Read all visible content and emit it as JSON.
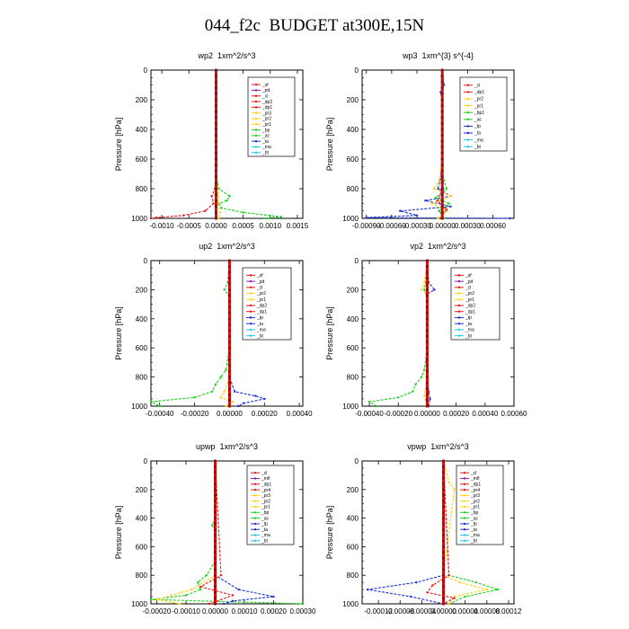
{
  "page": {
    "title": "044_f2c  BUDGET at300E,15N"
  },
  "chart_data": [
    {
      "type": "line",
      "title": "wp2  1xm^2/s^3",
      "ylabel": "Pressure [hPa]",
      "y_ticks": [
        0,
        200,
        400,
        600,
        800,
        1000
      ],
      "ylim": [
        1000,
        0
      ],
      "x_ticks": [
        "-0.0010",
        "-0.0005",
        "0.0000",
        "0.0005",
        "0.0010",
        "0.0015"
      ],
      "xlim": [
        -0.0012,
        0.0016
      ],
      "legend": [
        "_sf",
        "_pd",
        "_cl",
        "_dp2",
        "_dp1",
        "_pr3",
        "_pr2",
        "_pr1",
        "_bp",
        "_ac",
        "_ta",
        "_ma",
        "_bt"
      ],
      "series": [
        {
          "name": "_cl",
          "color": "#e8191b",
          "p": [
            0,
            200,
            400,
            600,
            800,
            850,
            900,
            950,
            980,
            995,
            1000
          ],
          "v": [
            0,
            0,
            0,
            0,
            -2e-05,
            -8e-05,
            -5e-05,
            -0.0002,
            -0.0006,
            -0.0011,
            -0.0012
          ]
        },
        {
          "name": "_bp",
          "color": "#1bd11b",
          "p": [
            0,
            400,
            700,
            800,
            850,
            880,
            900,
            930,
            960,
            990,
            1000
          ],
          "v": [
            0,
            0,
            0,
            5e-05,
            0.00025,
            0.0002,
            5e-05,
            0.0001,
            0.0005,
            0.0012,
            0.0009
          ]
        },
        {
          "name": "_pr1",
          "color": "#ffd21c",
          "p": [
            0,
            600,
            780,
            850,
            900,
            960,
            1000
          ],
          "v": [
            0,
            0,
            2e-05,
            4e-05,
            3e-05,
            8e-05,
            5e-05
          ]
        },
        {
          "name": "_bt",
          "color": "#1cc8e6",
          "p": [
            0,
            500,
            900,
            1000
          ],
          "v": [
            0,
            0,
            1e-05,
            0
          ]
        },
        {
          "name": "_pd",
          "color": "#8a1fa8",
          "p": [
            0,
            1000
          ],
          "v": [
            0,
            0
          ]
        }
      ]
    },
    {
      "type": "line",
      "title": "wp3  1xm^{3} s^{-4}",
      "ylabel": "Pressure [hPa]",
      "y_ticks": [
        0,
        200,
        400,
        600,
        800,
        1000
      ],
      "ylim": [
        1000,
        0
      ],
      "x_ticks": [
        "-0.00090",
        "-0.00060",
        "-0.00030",
        "0.00000",
        "0.00030",
        "0.00060"
      ],
      "xlim": [
        -0.00095,
        0.00085
      ],
      "legend": [
        "_cl",
        "_dp1",
        "_pr2",
        "_pr1",
        "_bp1",
        "_ac",
        "_tp",
        "_ta",
        "_ma",
        "_bt"
      ],
      "series": [
        {
          "name": "_tp",
          "color": "#1c2fd6",
          "p": [
            0,
            100,
            150,
            200,
            500,
            700,
            800,
            850,
            880,
            920,
            950,
            980,
            995,
            1000
          ],
          "v": [
            0,
            2e-05,
            -2e-05,
            0,
            0,
            -1e-05,
            -5e-05,
            0.0001,
            -0.0002,
            0.0001,
            -0.0005,
            -0.0003,
            -0.0009,
            0.0008
          ]
        },
        {
          "name": "_pr2",
          "color": "#ffd21c",
          "p": [
            0,
            600,
            750,
            800,
            850,
            900,
            950,
            1000
          ],
          "v": [
            0,
            0,
            -4e-05,
            -0.0001,
            0.0001,
            -0.00012,
            6e-05,
            -5e-05
          ]
        },
        {
          "name": "_ac",
          "color": "#1bd11b",
          "p": [
            0,
            700,
            800,
            860,
            900,
            950,
            1000
          ],
          "v": [
            0,
            0,
            5e-05,
            -8e-05,
            8e-05,
            -4e-05,
            3e-05
          ]
        },
        {
          "name": "_dp1",
          "color": "#e8191b",
          "p": [
            0,
            800,
            880,
            940,
            1000
          ],
          "v": [
            0,
            1e-05,
            -6e-05,
            5e-05,
            -2e-05
          ]
        }
      ]
    },
    {
      "type": "line",
      "title": "up2  1xm^2/s^3",
      "ylabel": "Pressure [hPa]",
      "y_ticks": [
        0,
        200,
        400,
        600,
        800,
        1000
      ],
      "ylim": [
        1000,
        0
      ],
      "x_ticks": [
        "-0.00040",
        "-0.00020",
        "0.00000",
        "0.00020",
        "0.00040"
      ],
      "xlim": [
        -0.00045,
        0.00042
      ],
      "legend": [
        "_sf",
        "_pd",
        "_cl",
        "_pr2",
        "_pr1",
        "_dp2",
        "_dp1",
        "_tp",
        "_ta",
        "_ma",
        "_bt"
      ],
      "series": [
        {
          "name": "_dp1",
          "color": "#1bd11b",
          "p": [
            0,
            150,
            200,
            250,
            600,
            750,
            800,
            850,
            900,
            940,
            970,
            1000
          ],
          "v": [
            0,
            -1e-05,
            -3e-05,
            0,
            0,
            -2e-05,
            -5e-05,
            -8e-05,
            -0.0001,
            -0.0002,
            -0.00045,
            -0.0004
          ]
        },
        {
          "name": "_tp",
          "color": "#1c2fd6",
          "p": [
            0,
            800,
            900,
            930,
            950,
            980,
            1000
          ],
          "v": [
            0,
            0,
            3e-05,
            0.00015,
            0.0002,
            8e-05,
            5e-05
          ]
        },
        {
          "name": "_pr2",
          "color": "#ffd21c",
          "p": [
            0,
            800,
            900,
            940,
            970,
            1000
          ],
          "v": [
            0,
            0,
            -3e-05,
            -5e-05,
            2e-05,
            -2e-05
          ]
        },
        {
          "name": "_cl",
          "color": "#e8191b",
          "p": [
            0,
            1000
          ],
          "v": [
            0,
            0
          ]
        }
      ]
    },
    {
      "type": "line",
      "title": "vp2  1xm^2/s^3",
      "ylabel": "Pressure [hPa]",
      "y_ticks": [
        0,
        200,
        400,
        600,
        800,
        1000
      ],
      "ylim": [
        1000,
        0
      ],
      "x_ticks": [
        "-0.00040",
        "-0.00020",
        "0.00000",
        "0.00020",
        "0.00040",
        "0.00060"
      ],
      "xlim": [
        -0.00045,
        0.0006
      ],
      "legend": [
        "_sf",
        "_pd",
        "_cl",
        "_pr2",
        "_pr1",
        "_dp2",
        "_dp1",
        "_tp",
        "_ta",
        "_ma",
        "_bt"
      ],
      "series": [
        {
          "name": "_dp1",
          "color": "#1bd11b",
          "p": [
            0,
            150,
            200,
            250,
            600,
            750,
            800,
            850,
            900,
            940,
            970,
            1000
          ],
          "v": [
            0,
            -1e-05,
            -2e-05,
            0,
            0,
            -2e-05,
            -4e-05,
            -8e-05,
            -0.0001,
            -0.0002,
            -0.0004,
            -0.00035
          ]
        },
        {
          "name": "_tp",
          "color": "#1c2fd6",
          "p": [
            0,
            150,
            200,
            230,
            800,
            900,
            950,
            1000
          ],
          "v": [
            0,
            1e-05,
            5e-05,
            0,
            0,
            1e-05,
            2e-05,
            1e-05
          ]
        },
        {
          "name": "_pr2",
          "color": "#ffd21c",
          "p": [
            0,
            150,
            200,
            230,
            800,
            930,
            1000
          ],
          "v": [
            0,
            -2e-05,
            -4e-05,
            0,
            0,
            -2e-05,
            0
          ]
        },
        {
          "name": "_cl",
          "color": "#e8191b",
          "p": [
            0,
            1000
          ],
          "v": [
            0,
            0
          ]
        }
      ]
    },
    {
      "type": "line",
      "title": "upwp  1xm^2/s^3",
      "ylabel": "Pressure [hPa]",
      "y_ticks": [
        0,
        200,
        400,
        600,
        800,
        1000
      ],
      "ylim": [
        1000,
        0
      ],
      "x_ticks": [
        "-0.00020",
        "-0.00010",
        "0.00000",
        "0.00010",
        "0.00020",
        "0.00030"
      ],
      "xlim": [
        -0.00022,
        0.0003
      ],
      "legend": [
        "_cl",
        "_mfl",
        "_dp1",
        "_pr4",
        "_pr3",
        "_pr2",
        "_pr1",
        "_bp",
        "_ac",
        "_tp",
        "_ta",
        "_ma",
        "_bt"
      ],
      "series": [
        {
          "name": "_bp",
          "color": "#1bd11b",
          "p": [
            0,
            400,
            450,
            500,
            700,
            800,
            850,
            900,
            940,
            970,
            1000
          ],
          "v": [
            0,
            0,
            -1e-05,
            0,
            0,
            -3e-05,
            -6e-05,
            -5e-05,
            -0.0001,
            -0.00022,
            0.0003
          ]
        },
        {
          "name": "_tp",
          "color": "#1c2fd6",
          "p": [
            0,
            800,
            900,
            950,
            980,
            1000
          ],
          "v": [
            0,
            0,
            8e-05,
            0.0002,
            6e-05,
            3e-05
          ]
        },
        {
          "name": "_pr2",
          "color": "#ffd21c",
          "p": [
            0,
            800,
            900,
            940,
            970,
            1000
          ],
          "v": [
            0,
            0,
            -8e-05,
            -0.00015,
            -0.0002,
            -0.00012
          ]
        },
        {
          "name": "_dp1",
          "color": "#e8191b",
          "p": [
            0,
            800,
            880,
            940,
            1000
          ],
          "v": [
            0,
            2e-05,
            -5e-05,
            6e-05,
            -2e-05
          ]
        },
        {
          "name": "_cl",
          "color": "#8a1fa8",
          "p": [
            0,
            1000
          ],
          "v": [
            0,
            0
          ]
        }
      ]
    },
    {
      "type": "line",
      "title": "vpwp  1xm^2/s^3",
      "ylabel": "Pressure [hPa]",
      "y_ticks": [
        0,
        200,
        400,
        600,
        800,
        1000
      ],
      "ylim": [
        1000,
        0
      ],
      "x_ticks": [
        "-0.00012",
        "-0.00008",
        "-0.00004",
        "0.00000",
        "0.00004",
        "0.00008",
        "0.00012"
      ],
      "xlim": [
        -0.00015,
        0.00013
      ],
      "legend": [
        "_cl",
        "_mfl",
        "_dp1",
        "_pr4",
        "_pr3",
        "_pr2",
        "_pr1",
        "_bp",
        "_ac",
        "_tp",
        "_ta",
        "_ma",
        "_bt"
      ],
      "series": [
        {
          "name": "_tp",
          "color": "#1c2fd6",
          "p": [
            0,
            800,
            850,
            900,
            950,
            1000
          ],
          "v": [
            0,
            0,
            -5e-05,
            -0.00014,
            -6e-05,
            0
          ]
        },
        {
          "name": "_ac",
          "color": "#1bd11b",
          "p": [
            0,
            800,
            850,
            900,
            950,
            1000
          ],
          "v": [
            0,
            1e-05,
            6e-05,
            0.0001,
            4e-05,
            1e-05
          ]
        },
        {
          "name": "_pr2",
          "color": "#ffd21c",
          "p": [
            0,
            150,
            200,
            800,
            850,
            900,
            950,
            1000
          ],
          "v": [
            0,
            1e-05,
            2e-05,
            0,
            3e-05,
            8e-05,
            2e-05,
            1e-05
          ]
        },
        {
          "name": "_dp1",
          "color": "#e8191b",
          "p": [
            0,
            800,
            870,
            920,
            960,
            1000
          ],
          "v": [
            0,
            1e-05,
            -2e-05,
            -3e-05,
            2e-05,
            0
          ]
        },
        {
          "name": "_cl",
          "color": "#8a1fa8",
          "p": [
            0,
            1000
          ],
          "v": [
            0,
            0
          ]
        }
      ]
    }
  ]
}
